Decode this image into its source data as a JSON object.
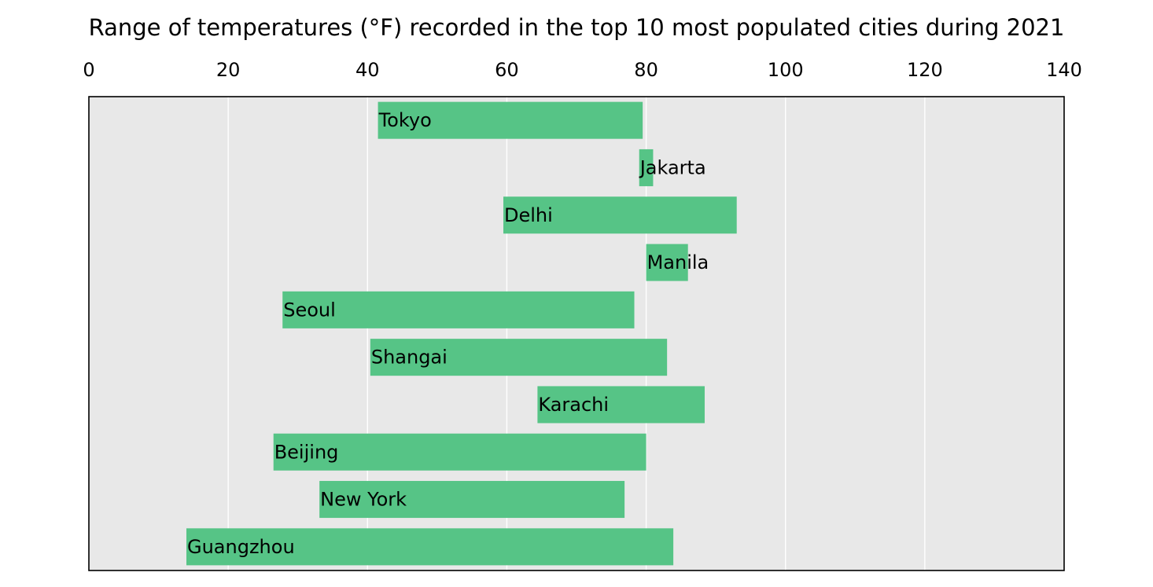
{
  "chart_data": {
    "type": "bar",
    "orientation": "horizontal",
    "title": "Range of temperatures (°F) recorded in the top 10 most populated cities during 2021",
    "xlabel": "",
    "ylabel": "",
    "xlim": [
      0,
      140
    ],
    "x_ticks": [
      "0",
      "20",
      "40",
      "60",
      "80",
      "100",
      "120",
      "140"
    ],
    "x_axis_position": "top",
    "grid": "vertical",
    "bar_color": "#56c486",
    "plot_background": "#e8e8e8",
    "bars": [
      {
        "label": "Tokyo",
        "min": 41.5,
        "max": 79.5
      },
      {
        "label": "Jakarta",
        "min": 79,
        "max": 81
      },
      {
        "label": "Delhi",
        "min": 59.5,
        "max": 93
      },
      {
        "label": "Manila",
        "min": 80,
        "max": 86
      },
      {
        "label": "Seoul",
        "min": 27.8,
        "max": 78.3
      },
      {
        "label": "Shangai",
        "min": 40.4,
        "max": 83
      },
      {
        "label": "Karachi",
        "min": 64.4,
        "max": 88.4
      },
      {
        "label": "Beijing",
        "min": 26.5,
        "max": 80
      },
      {
        "label": "New York",
        "min": 33.1,
        "max": 76.9
      },
      {
        "label": "Guangzhou",
        "min": 14,
        "max": 83.9
      }
    ]
  }
}
